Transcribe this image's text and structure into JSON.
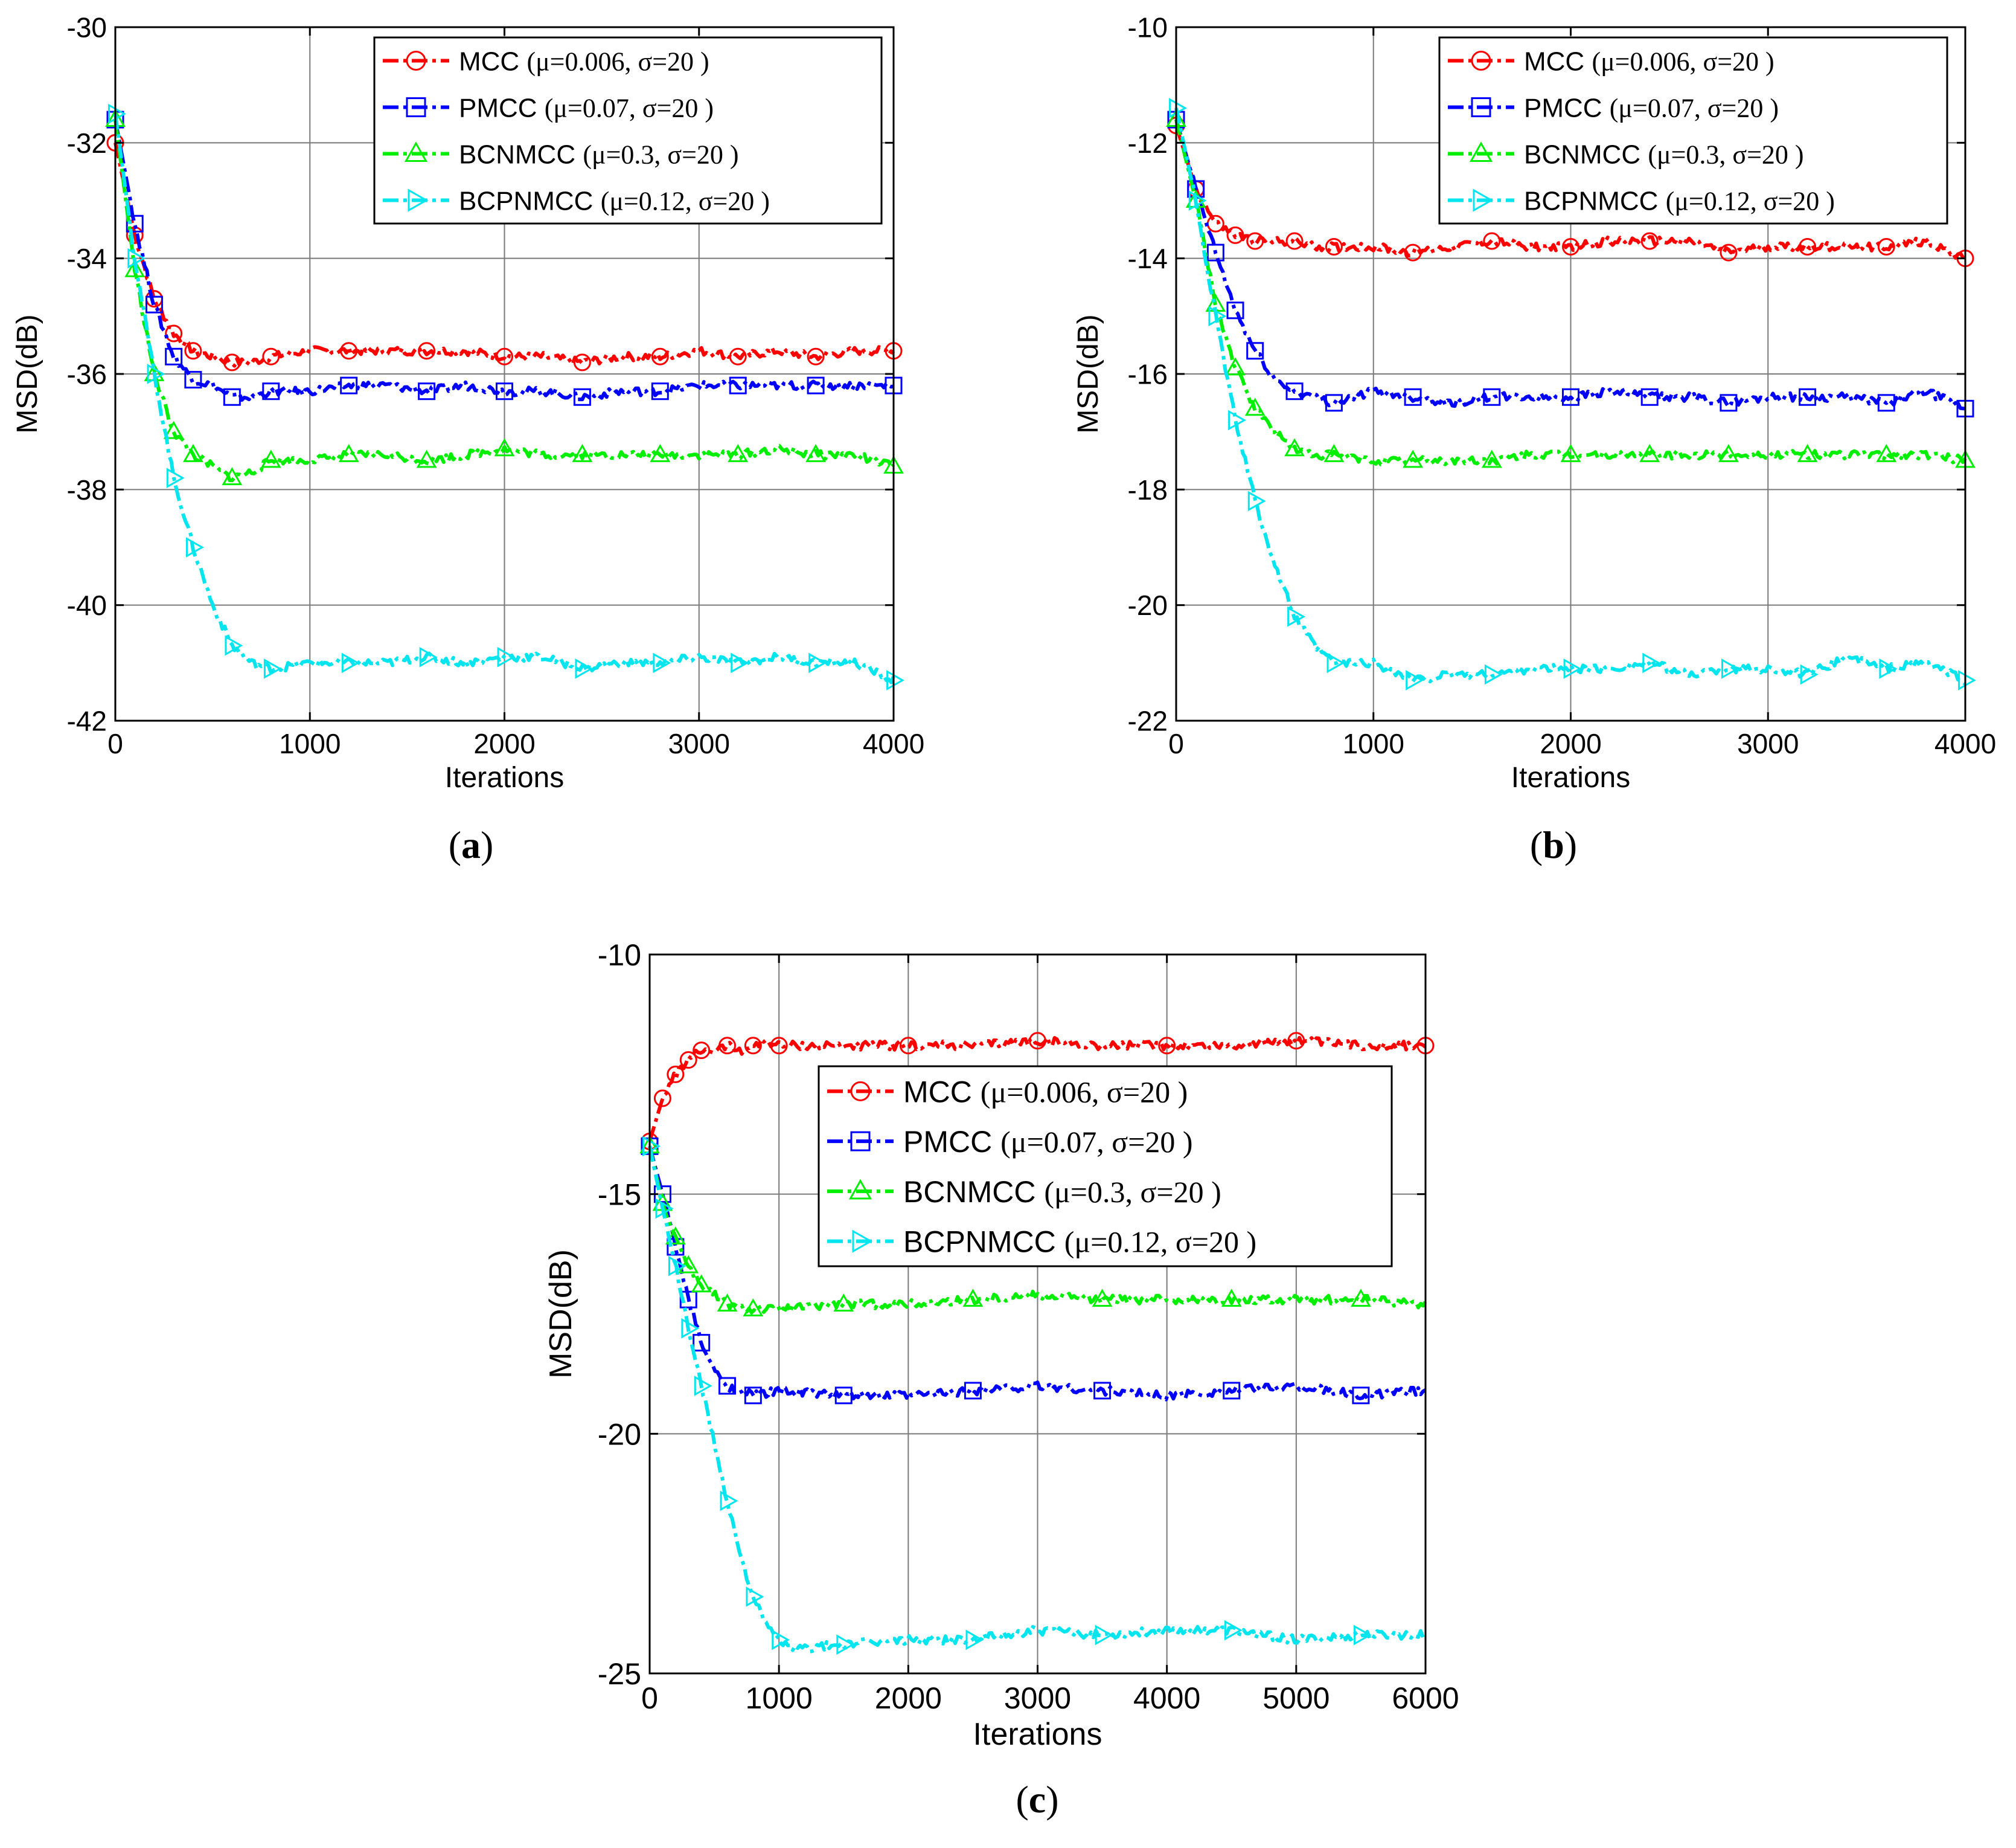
{
  "figure": {
    "background": "#ffffff"
  },
  "chart_data": [
    {
      "type": "line",
      "panel": "a",
      "caption_open": "(",
      "caption_letter": "a",
      "caption_close": ")",
      "xlabel": "Iterations",
      "ylabel": "MSD(dB)",
      "xlim": [
        0,
        4000
      ],
      "ylim": [
        -42,
        -30
      ],
      "xticks": [
        0,
        1000,
        2000,
        3000,
        4000
      ],
      "xtick_labels": [
        "0",
        "1000",
        "2000",
        "3000",
        "4000"
      ],
      "yticks": [
        -42,
        -40,
        -38,
        -36,
        -34,
        -32,
        -30
      ],
      "ytick_labels": [
        "-42",
        "-40",
        "-38",
        "-36",
        "-34",
        "-32",
        "-30"
      ],
      "grid": true,
      "legend_position": "top-right",
      "series": [
        {
          "name": "MCC",
          "params": "(μ=0.006, σ=20 )",
          "color": "#ff0000",
          "marker": "circle",
          "x": [
            0,
            100,
            200,
            300,
            400,
            500,
            600,
            700,
            800,
            1000,
            1200,
            1400,
            1600,
            1800,
            2000,
            2200,
            2400,
            2600,
            2800,
            3000,
            3200,
            3400,
            3600,
            3800,
            4000
          ],
          "y": [
            -32.0,
            -33.6,
            -34.7,
            -35.3,
            -35.6,
            -35.7,
            -35.8,
            -35.8,
            -35.7,
            -35.6,
            -35.6,
            -35.6,
            -35.6,
            -35.6,
            -35.7,
            -35.7,
            -35.8,
            -35.7,
            -35.7,
            -35.6,
            -35.7,
            -35.6,
            -35.7,
            -35.6,
            -35.6
          ]
        },
        {
          "name": "PMCC",
          "params": "(μ=0.07, σ=20 )",
          "color": "#0000ff",
          "marker": "square",
          "x": [
            0,
            100,
            200,
            300,
            400,
            500,
            600,
            700,
            800,
            1000,
            1200,
            1400,
            1600,
            1800,
            2000,
            2200,
            2400,
            2600,
            2800,
            3000,
            3200,
            3400,
            3600,
            3800,
            4000
          ],
          "y": [
            -31.6,
            -33.4,
            -34.8,
            -35.7,
            -36.1,
            -36.2,
            -36.4,
            -36.4,
            -36.3,
            -36.3,
            -36.2,
            -36.2,
            -36.3,
            -36.2,
            -36.3,
            -36.3,
            -36.4,
            -36.3,
            -36.3,
            -36.2,
            -36.2,
            -36.2,
            -36.2,
            -36.2,
            -36.2
          ]
        },
        {
          "name": "BCNMCC",
          "params": "(μ=0.3, σ=20 )",
          "color": "#00ee00",
          "marker": "triangle",
          "x": [
            0,
            100,
            200,
            300,
            400,
            500,
            600,
            700,
            800,
            1000,
            1200,
            1400,
            1600,
            1800,
            2000,
            2200,
            2400,
            2600,
            2800,
            3000,
            3200,
            3400,
            3600,
            3800,
            4000
          ],
          "y": [
            -31.6,
            -34.2,
            -36.0,
            -37.0,
            -37.4,
            -37.6,
            -37.8,
            -37.7,
            -37.5,
            -37.5,
            -37.4,
            -37.4,
            -37.5,
            -37.4,
            -37.3,
            -37.4,
            -37.4,
            -37.4,
            -37.4,
            -37.4,
            -37.4,
            -37.3,
            -37.4,
            -37.4,
            -37.6
          ]
        },
        {
          "name": "BCPNMCC",
          "params": "(μ=0.12, σ=20 )",
          "color": "#00e5ee",
          "marker": "triangle-right",
          "x": [
            0,
            100,
            200,
            300,
            400,
            500,
            600,
            700,
            800,
            1000,
            1200,
            1400,
            1600,
            1800,
            2000,
            2200,
            2400,
            2600,
            2800,
            3000,
            3200,
            3400,
            3600,
            3800,
            4000
          ],
          "y": [
            -31.5,
            -34.0,
            -36.0,
            -37.8,
            -39.0,
            -40.0,
            -40.7,
            -41.0,
            -41.1,
            -41.0,
            -41.0,
            -41.0,
            -40.9,
            -41.0,
            -40.9,
            -40.9,
            -41.1,
            -41.0,
            -41.0,
            -40.9,
            -41.0,
            -40.9,
            -41.0,
            -41.0,
            -41.3
          ]
        }
      ]
    },
    {
      "type": "line",
      "panel": "b",
      "caption_open": "(",
      "caption_letter": "b",
      "caption_close": ")",
      "xlabel": "Iterations",
      "ylabel": "MSD(dB)",
      "xlim": [
        0,
        4000
      ],
      "ylim": [
        -22,
        -10
      ],
      "xticks": [
        0,
        1000,
        2000,
        3000,
        4000
      ],
      "xtick_labels": [
        "0",
        "1000",
        "2000",
        "3000",
        "4000"
      ],
      "yticks": [
        -22,
        -20,
        -18,
        -16,
        -14,
        -12,
        -10
      ],
      "ytick_labels": [
        "-22",
        "-20",
        "-18",
        "-16",
        "-14",
        "-12",
        "-10"
      ],
      "grid": true,
      "legend_position": "top-right",
      "series": [
        {
          "name": "MCC",
          "params": "(μ=0.006, σ=20 )",
          "color": "#ff0000",
          "marker": "circle",
          "x": [
            0,
            100,
            200,
            300,
            400,
            500,
            600,
            700,
            800,
            1000,
            1200,
            1400,
            1600,
            1800,
            2000,
            2200,
            2400,
            2600,
            2800,
            3000,
            3200,
            3400,
            3600,
            3800,
            4000
          ],
          "y": [
            -11.7,
            -12.8,
            -13.4,
            -13.6,
            -13.7,
            -13.7,
            -13.7,
            -13.8,
            -13.8,
            -13.8,
            -13.9,
            -13.8,
            -13.7,
            -13.8,
            -13.8,
            -13.7,
            -13.7,
            -13.7,
            -13.9,
            -13.8,
            -13.8,
            -13.8,
            -13.8,
            -13.7,
            -14.0
          ]
        },
        {
          "name": "PMCC",
          "params": "(μ=0.07, σ=20 )",
          "color": "#0000ff",
          "marker": "square",
          "x": [
            0,
            100,
            200,
            300,
            400,
            500,
            600,
            700,
            800,
            1000,
            1200,
            1400,
            1600,
            1800,
            2000,
            2200,
            2400,
            2600,
            2800,
            3000,
            3200,
            3400,
            3600,
            3800,
            4000
          ],
          "y": [
            -11.6,
            -12.8,
            -13.9,
            -14.9,
            -15.6,
            -16.1,
            -16.3,
            -16.4,
            -16.5,
            -16.3,
            -16.4,
            -16.5,
            -16.4,
            -16.4,
            -16.4,
            -16.3,
            -16.4,
            -16.4,
            -16.5,
            -16.4,
            -16.4,
            -16.4,
            -16.5,
            -16.3,
            -16.6
          ]
        },
        {
          "name": "BCNMCC",
          "params": "(μ=0.3, σ=20 )",
          "color": "#00ee00",
          "marker": "triangle",
          "x": [
            0,
            100,
            200,
            300,
            400,
            500,
            600,
            700,
            800,
            1000,
            1200,
            1400,
            1600,
            1800,
            2000,
            2200,
            2400,
            2600,
            2800,
            3000,
            3200,
            3400,
            3600,
            3800,
            4000
          ],
          "y": [
            -11.6,
            -13.0,
            -14.8,
            -15.9,
            -16.6,
            -17.0,
            -17.3,
            -17.4,
            -17.4,
            -17.5,
            -17.5,
            -17.5,
            -17.5,
            -17.4,
            -17.4,
            -17.4,
            -17.4,
            -17.4,
            -17.4,
            -17.4,
            -17.4,
            -17.4,
            -17.4,
            -17.4,
            -17.5
          ]
        },
        {
          "name": "BCPNMCC",
          "params": "(μ=0.12, σ=20 )",
          "color": "#00e5ee",
          "marker": "triangle-right",
          "x": [
            0,
            100,
            200,
            300,
            400,
            500,
            600,
            700,
            800,
            1000,
            1200,
            1400,
            1600,
            1800,
            2000,
            2200,
            2400,
            2600,
            2800,
            3000,
            3200,
            3400,
            3600,
            3800,
            4000
          ],
          "y": [
            -11.4,
            -13.0,
            -15.0,
            -16.8,
            -18.2,
            -19.3,
            -20.2,
            -20.7,
            -21.0,
            -21.0,
            -21.3,
            -21.2,
            -21.2,
            -21.1,
            -21.1,
            -21.1,
            -21.0,
            -21.2,
            -21.1,
            -21.1,
            -21.2,
            -20.9,
            -21.1,
            -21.0,
            -21.3
          ]
        }
      ]
    },
    {
      "type": "line",
      "panel": "c",
      "caption_open": "(",
      "caption_letter": "c",
      "caption_close": ")",
      "xlabel": "Iterations",
      "ylabel": "MSD(dB)",
      "xlim": [
        0,
        6000
      ],
      "ylim": [
        -25,
        -10
      ],
      "xticks": [
        0,
        1000,
        2000,
        3000,
        4000,
        5000,
        6000
      ],
      "xtick_labels": [
        "0",
        "1000",
        "2000",
        "3000",
        "4000",
        "5000",
        "6000"
      ],
      "yticks": [
        -25,
        -20,
        -15,
        -10
      ],
      "ytick_labels": [
        "-25",
        "-20",
        "-15",
        "-10"
      ],
      "grid": true,
      "legend_position": "top-right",
      "series": [
        {
          "name": "MCC",
          "params": "(μ=0.006, σ=20 )",
          "color": "#ff0000",
          "marker": "circle",
          "x": [
            0,
            100,
            200,
            300,
            400,
            500,
            600,
            700,
            800,
            900,
            1000,
            1500,
            2000,
            2500,
            3000,
            3500,
            4000,
            4500,
            5000,
            5500,
            6000
          ],
          "y": [
            -13.9,
            -13.0,
            -12.5,
            -12.2,
            -12.0,
            -12.0,
            -11.9,
            -12.0,
            -11.9,
            -11.8,
            -11.9,
            -11.9,
            -11.9,
            -11.9,
            -11.8,
            -11.9,
            -11.9,
            -11.9,
            -11.8,
            -11.9,
            -11.9
          ]
        },
        {
          "name": "PMCC",
          "params": "(μ=0.07, σ=20 )",
          "color": "#0000ff",
          "marker": "square",
          "x": [
            0,
            100,
            200,
            300,
            400,
            500,
            600,
            700,
            800,
            1000,
            1500,
            2000,
            2500,
            3000,
            3500,
            4000,
            4500,
            5000,
            5500,
            6000
          ],
          "y": [
            -14.0,
            -15.0,
            -16.1,
            -17.2,
            -18.1,
            -18.7,
            -19.0,
            -19.1,
            -19.2,
            -19.1,
            -19.2,
            -19.2,
            -19.1,
            -19.0,
            -19.1,
            -19.2,
            -19.1,
            -19.0,
            -19.2,
            -19.1
          ]
        },
        {
          "name": "BCNMCC",
          "params": "(μ=0.3, σ=20 )",
          "color": "#00ee00",
          "marker": "triangle",
          "x": [
            0,
            100,
            200,
            300,
            400,
            500,
            600,
            700,
            800,
            1000,
            1500,
            2000,
            2500,
            3000,
            3500,
            4000,
            4500,
            5000,
            5500,
            6000
          ],
          "y": [
            -14.0,
            -15.2,
            -15.9,
            -16.5,
            -16.9,
            -17.1,
            -17.3,
            -17.4,
            -17.4,
            -17.4,
            -17.3,
            -17.3,
            -17.2,
            -17.1,
            -17.2,
            -17.2,
            -17.2,
            -17.2,
            -17.2,
            -17.3
          ]
        },
        {
          "name": "BCPNMCC",
          "params": "(μ=0.12, σ=20 )",
          "color": "#00e5ee",
          "marker": "triangle-right",
          "x": [
            0,
            100,
            200,
            300,
            400,
            500,
            600,
            700,
            800,
            900,
            1000,
            1100,
            1500,
            2000,
            2500,
            3000,
            3500,
            4000,
            4500,
            5000,
            5500,
            6000
          ],
          "y": [
            -14.0,
            -15.3,
            -16.5,
            -17.8,
            -19.0,
            -20.2,
            -21.4,
            -22.5,
            -23.4,
            -24.0,
            -24.3,
            -24.5,
            -24.4,
            -24.3,
            -24.3,
            -24.1,
            -24.2,
            -24.1,
            -24.1,
            -24.3,
            -24.2,
            -24.2
          ]
        }
      ]
    }
  ]
}
